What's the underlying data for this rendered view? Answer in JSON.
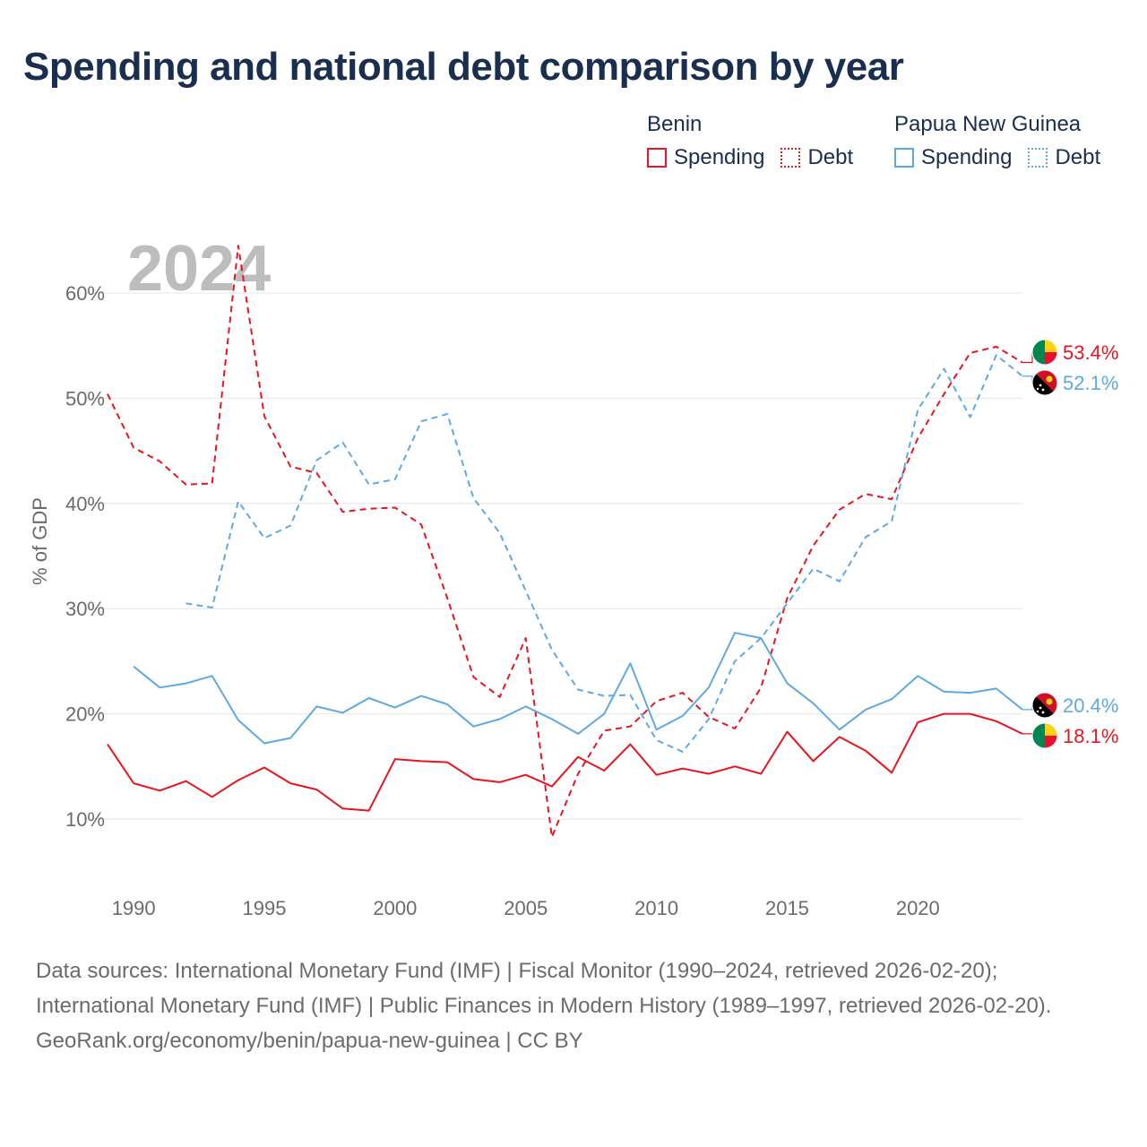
{
  "title": "Spending and national debt comparison by year",
  "legend": [
    {
      "country": "Benin",
      "color": "#e8141e",
      "spending_label": "Spending",
      "debt_label": "Debt"
    },
    {
      "country": "Papua New Guinea",
      "color": "#5ea9e2",
      "spending_label": "Spending",
      "debt_label": "Debt"
    }
  ],
  "chart_data": {
    "type": "line",
    "title": "Spending and national debt comparison by year",
    "ylabel": "% of GDP",
    "xlabel": "",
    "year_watermark": "2024",
    "xlim": [
      1989,
      2024
    ],
    "ylim": [
      3.5,
      64
    ],
    "x_ticks": [
      1990,
      1995,
      2000,
      2005,
      2010,
      2015,
      2020
    ],
    "y_ticks": [
      10,
      20,
      30,
      40,
      50,
      60
    ],
    "y_tick_labels": [
      "10%",
      "20%",
      "30%",
      "40%",
      "50%",
      "60%"
    ],
    "grid": true,
    "series": [
      {
        "name": "Benin Spending",
        "country": "Benin",
        "kind": "spending",
        "color": "#e8141e",
        "dashed": false,
        "x": [
          1989,
          1990,
          1991,
          1992,
          1993,
          1994,
          1995,
          1996,
          1997,
          1998,
          1999,
          2000,
          2001,
          2002,
          2003,
          2004,
          2005,
          2006,
          2007,
          2008,
          2009,
          2010,
          2011,
          2012,
          2013,
          2014,
          2015,
          2016,
          2017,
          2018,
          2019,
          2020,
          2021,
          2022,
          2023,
          2024
        ],
        "values": [
          17.1,
          13.4,
          12.7,
          13.6,
          12.1,
          13.7,
          14.9,
          13.4,
          12.8,
          11.0,
          10.8,
          15.7,
          15.5,
          15.4,
          13.8,
          13.5,
          14.2,
          13.1,
          15.9,
          14.6,
          17.1,
          14.2,
          14.8,
          14.3,
          15.0,
          14.3,
          18.3,
          15.5,
          17.8,
          16.5,
          14.4,
          19.2,
          20.0,
          20.0,
          19.3,
          18.1
        ],
        "end_label": "18.1%",
        "flag": "benin"
      },
      {
        "name": "Benin Debt",
        "country": "Benin",
        "kind": "debt",
        "color": "#e8141e",
        "dashed": true,
        "x": [
          1989,
          1990,
          1991,
          1992,
          1993,
          1994,
          1995,
          1996,
          1997,
          1998,
          1999,
          2000,
          2001,
          2002,
          2003,
          2004,
          2005,
          2006,
          2007,
          2008,
          2009,
          2010,
          2011,
          2012,
          2013,
          2014,
          2015,
          2016,
          2017,
          2018,
          2019,
          2020,
          2021,
          2022,
          2023,
          2024
        ],
        "values": [
          50.4,
          45.3,
          44.0,
          41.8,
          41.9,
          64.5,
          48.3,
          43.5,
          42.9,
          39.2,
          39.5,
          39.6,
          38.0,
          31.0,
          23.5,
          21.6,
          27.2,
          8.3,
          14.3,
          18.4,
          18.8,
          21.2,
          22.0,
          19.7,
          18.6,
          22.5,
          31.0,
          36.0,
          39.4,
          40.9,
          40.4,
          46.2,
          50.4,
          54.3,
          54.9,
          53.4
        ],
        "end_label": "53.4%",
        "flag": "benin"
      },
      {
        "name": "Papua New Guinea Spending",
        "country": "Papua New Guinea",
        "kind": "spending",
        "color": "#5ea9e2",
        "dashed": false,
        "x": [
          1990,
          1991,
          1992,
          1993,
          1994,
          1995,
          1996,
          1997,
          1998,
          1999,
          2000,
          2001,
          2002,
          2003,
          2004,
          2005,
          2006,
          2007,
          2008,
          2009,
          2010,
          2011,
          2012,
          2013,
          2014,
          2015,
          2016,
          2017,
          2018,
          2019,
          2020,
          2021,
          2022,
          2023,
          2024
        ],
        "values": [
          24.5,
          22.5,
          22.9,
          23.6,
          19.4,
          17.2,
          17.7,
          20.7,
          20.1,
          21.5,
          20.6,
          21.7,
          20.9,
          18.8,
          19.5,
          20.7,
          19.5,
          18.1,
          20.0,
          24.8,
          18.5,
          19.8,
          22.5,
          27.7,
          27.2,
          22.9,
          21.0,
          18.5,
          20.4,
          21.4,
          23.6,
          22.1,
          22.0,
          22.4,
          20.4
        ],
        "end_label": "20.4%",
        "flag": "png"
      },
      {
        "name": "Papua New Guinea Debt",
        "country": "Papua New Guinea",
        "kind": "debt",
        "color": "#5ea9e2",
        "dashed": true,
        "x": [
          1992,
          1993,
          1994,
          1995,
          1996,
          1997,
          1998,
          1999,
          2000,
          2001,
          2002,
          2003,
          2004,
          2005,
          2006,
          2007,
          2008,
          2009,
          2010,
          2011,
          2012,
          2013,
          2014,
          2015,
          2016,
          2017,
          2018,
          2019,
          2020,
          2021,
          2022,
          2023,
          2024
        ],
        "values": [
          30.5,
          30.1,
          40.2,
          36.7,
          37.9,
          44.1,
          45.8,
          41.8,
          42.3,
          47.8,
          48.5,
          40.5,
          37.2,
          31.7,
          26.1,
          22.3,
          21.7,
          21.8,
          17.5,
          16.4,
          19.5,
          25.0,
          27.2,
          30.5,
          33.8,
          32.6,
          36.8,
          38.3,
          48.9,
          52.8,
          48.2,
          54.1,
          52.1
        ],
        "end_label": "52.1%",
        "flag": "png"
      }
    ]
  },
  "sources": {
    "line1": "Data sources: International Monetary Fund (IMF) | Fiscal Monitor (1990–2024, retrieved 2026-02-20); International Monetary Fund (IMF) | Public Finances in Modern History (1989–1997, retrieved 2026-02-20).",
    "line2": "GeoRank.org/economy/benin/papua-new-guinea | CC BY"
  }
}
